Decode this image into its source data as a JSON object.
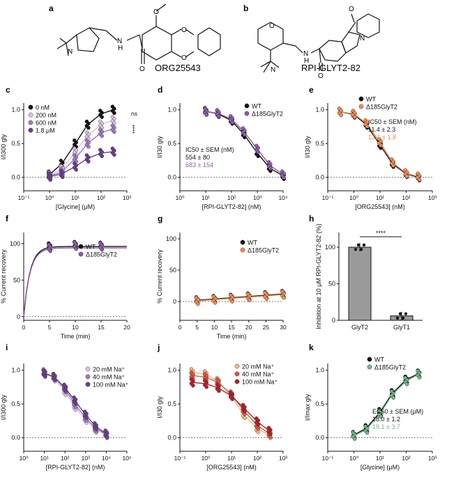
{
  "figure": {
    "panel_letters": [
      "a",
      "b",
      "c",
      "d",
      "e",
      "f",
      "g",
      "h",
      "i",
      "j",
      "k"
    ],
    "compound_a": {
      "name": "ORG25543",
      "atom_o1": "O",
      "atom_o2": "O",
      "atom_o3": "O",
      "atom_o4": "O",
      "atom_n": "N",
      "atom_nplus": "N",
      "atom_h": "H"
    },
    "compound_b": {
      "name": "RPI-GLYT2-82",
      "atom_o1": "O",
      "atom_o2": "O",
      "atom_o3": "O",
      "atom_n": "N",
      "atom_n2": "N",
      "atom_nplus": "N",
      "atom_h": "H"
    }
  },
  "colors": {
    "black": "#111111",
    "purple_dark": "#6a3d8f",
    "purple_mid": "#9f79bd",
    "purple_light": "#d6c4e6",
    "wt": "#111111",
    "mut_purple": "#8e5aa8",
    "orange": "#f08a52",
    "orange_light": "#f6b483",
    "red_dark": "#b5202a",
    "red_mid": "#e0553b",
    "green": "#6fb585",
    "gray_bar": "#9a9a9a"
  },
  "chart_data": [
    {
      "panel": "c",
      "type": "scatter",
      "ylabel": "I/I300 gly",
      "xlabel": "[Glycine] (μM)",
      "xscale": "log",
      "xlim": [
        0.1,
        1000
      ],
      "ylim": [
        -0.2,
        1.1
      ],
      "xticks": [
        "10⁻¹",
        "10⁰",
        "10¹",
        "10²",
        "10³"
      ],
      "yticks": [
        "0.0",
        "0.5",
        "1.0"
      ],
      "series": [
        {
          "name": "0 nM",
          "x": [
            1,
            3,
            10,
            30,
            100,
            300
          ],
          "y": [
            0.04,
            0.2,
            0.5,
            0.78,
            0.94,
            1.0
          ]
        },
        {
          "name": "200 nM",
          "x": [
            1,
            3,
            10,
            30,
            100,
            300
          ],
          "y": [
            0.03,
            0.12,
            0.38,
            0.62,
            0.78,
            0.85
          ]
        },
        {
          "name": "600 nM",
          "x": [
            1,
            3,
            10,
            30,
            100,
            300
          ],
          "y": [
            0.02,
            0.08,
            0.28,
            0.5,
            0.66,
            0.72
          ]
        },
        {
          "name": "1.8 μM",
          "x": [
            1,
            3,
            10,
            30,
            100,
            300
          ],
          "y": [
            0.01,
            0.05,
            0.16,
            0.28,
            0.36,
            0.38
          ]
        }
      ],
      "annotations": [
        "ns",
        "****"
      ]
    },
    {
      "panel": "d",
      "type": "scatter",
      "ylabel": "I/I30 gly",
      "xlabel": "[RPI-GLYT2-82] (nM)",
      "xscale": "log",
      "xlim": [
        1,
        10000
      ],
      "ylim": [
        -0.2,
        1.1
      ],
      "xticks": [
        "10⁰",
        "10¹",
        "10²",
        "10³",
        "10⁴"
      ],
      "yticks": [
        "0.0",
        "0.5",
        "1.0"
      ],
      "series": [
        {
          "name": "WT",
          "x": [
            10,
            30,
            100,
            300,
            1000,
            3000,
            10000
          ],
          "y": [
            0.98,
            0.94,
            0.84,
            0.64,
            0.36,
            0.14,
            0.02
          ]
        },
        {
          "name": "Δ185GlyT2",
          "x": [
            10,
            30,
            100,
            300,
            1000,
            3000,
            10000
          ],
          "y": [
            0.97,
            0.95,
            0.86,
            0.68,
            0.42,
            0.18,
            0.04
          ]
        }
      ],
      "ic50_header": "IC50 ± SEM (nM)",
      "ic50_values": [
        "554 ± 80",
        "683 ± 154"
      ]
    },
    {
      "panel": "e",
      "type": "scatter",
      "ylabel": "I/I30 gly",
      "xlabel": "[ORG25543] (nM)",
      "xscale": "log",
      "xlim": [
        0.1,
        1000
      ],
      "ylim": [
        -0.2,
        1.1
      ],
      "xticks": [
        "10⁻¹",
        "10⁰",
        "10¹",
        "10²",
        "10³"
      ],
      "yticks": [
        "0.0",
        "0.5",
        "1.0"
      ],
      "series": [
        {
          "name": "WT",
          "x": [
            0.3,
            1,
            3,
            10,
            30,
            100,
            300
          ],
          "y": [
            0.97,
            0.93,
            0.78,
            0.48,
            0.2,
            0.05,
            0.0
          ]
        },
        {
          "name": "Δ185GlyT2",
          "x": [
            0.3,
            1,
            3,
            10,
            30,
            100,
            300
          ],
          "y": [
            0.97,
            0.94,
            0.8,
            0.52,
            0.22,
            0.06,
            0.01
          ]
        }
      ],
      "ic50_header": "IC50 ± SEM (nM)",
      "ic50_values": [
        "11.4 ± 2.3",
        "13.1 ± 1.8"
      ]
    },
    {
      "panel": "f",
      "type": "scatter",
      "ylabel": "% Current recovery",
      "xlabel": "Time (min)",
      "xlim": [
        0,
        20
      ],
      "ylim": [
        -5,
        115
      ],
      "xticks": [
        "0",
        "5",
        "10",
        "15",
        "20"
      ],
      "yticks": [
        "0",
        "50",
        "100"
      ],
      "series": [
        {
          "name": "WT",
          "x": [
            5,
            10,
            15
          ],
          "y": [
            96,
            98,
            97
          ]
        },
        {
          "name": "Δ185GlyT2",
          "x": [
            5,
            10,
            15
          ],
          "y": [
            94,
            97,
            96
          ]
        }
      ]
    },
    {
      "panel": "g",
      "type": "scatter",
      "ylabel": "% Current recovery",
      "xlabel": "Time (min)",
      "xlim": [
        0,
        30
      ],
      "ylim": [
        -30,
        110
      ],
      "xticks": [
        "0",
        "5",
        "10",
        "15",
        "20",
        "25",
        "30"
      ],
      "yticks": [
        "0",
        "50",
        "100"
      ],
      "series": [
        {
          "name": "WT",
          "x": [
            5,
            10,
            15,
            20,
            25,
            30
          ],
          "y": [
            2,
            4,
            6,
            8,
            10,
            12
          ]
        },
        {
          "name": "Δ185GlyT2",
          "x": [
            5,
            10,
            15,
            20,
            25,
            30
          ],
          "y": [
            1,
            3,
            5,
            7,
            9,
            11
          ]
        }
      ]
    },
    {
      "panel": "h",
      "type": "bar",
      "ylabel": "Inhibition at 10 μM RPI-GLYT2-82 (%)",
      "categories": [
        "GlyT2",
        "GlyT1"
      ],
      "values": [
        100,
        6
      ],
      "ylim": [
        0,
        120
      ],
      "yticks": [
        "0",
        "50",
        "100"
      ],
      "annotation": "****"
    },
    {
      "panel": "i",
      "type": "scatter",
      "ylabel": "I/I300 gly",
      "xlabel": "[RPI-GLYT2-82] (nM)",
      "xscale": "log",
      "xlim": [
        1,
        100000
      ],
      "ylim": [
        -0.2,
        1.1
      ],
      "xticks": [
        "10⁰",
        "10¹",
        "10²",
        "10³",
        "10⁴",
        "10⁵"
      ],
      "yticks": [
        "0.0",
        "0.5",
        "1.0"
      ],
      "series": [
        {
          "name": "20 mM Na⁺",
          "x": [
            10,
            30,
            100,
            300,
            1000,
            3000,
            10000
          ],
          "y": [
            0.97,
            0.88,
            0.68,
            0.46,
            0.27,
            0.12,
            0.04
          ]
        },
        {
          "name": "40 mM Na⁺",
          "x": [
            10,
            30,
            100,
            300,
            1000,
            3000,
            10000
          ],
          "y": [
            0.96,
            0.9,
            0.72,
            0.5,
            0.3,
            0.14,
            0.05
          ]
        },
        {
          "name": "100 mM Na⁺",
          "x": [
            10,
            30,
            100,
            300,
            1000,
            3000,
            10000
          ],
          "y": [
            0.95,
            0.9,
            0.74,
            0.55,
            0.34,
            0.17,
            0.06
          ]
        }
      ]
    },
    {
      "panel": "j",
      "type": "scatter",
      "ylabel": "I/I30 gly",
      "xlabel": "[ORG25543] (nM)",
      "xscale": "log",
      "xlim": [
        0.1,
        1000
      ],
      "ylim": [
        -0.2,
        1.1
      ],
      "xticks": [
        "10⁻¹",
        "10⁰",
        "10¹",
        "10²",
        "10³"
      ],
      "yticks": [
        "0.0",
        "0.5",
        "1.0"
      ],
      "series": [
        {
          "name": "20 mM Na⁺",
          "x": [
            0.3,
            1,
            3,
            10,
            30,
            100,
            300
          ],
          "y": [
            0.97,
            0.94,
            0.84,
            0.62,
            0.34,
            0.13,
            0.04
          ]
        },
        {
          "name": "40 mM Na⁺",
          "x": [
            0.3,
            1,
            3,
            10,
            30,
            100,
            300
          ],
          "y": [
            0.92,
            0.9,
            0.82,
            0.64,
            0.4,
            0.18,
            0.06
          ]
        },
        {
          "name": "100 mM Na⁺",
          "x": [
            0.3,
            1,
            3,
            10,
            30,
            100,
            300
          ],
          "y": [
            0.82,
            0.8,
            0.74,
            0.62,
            0.44,
            0.24,
            0.1
          ]
        }
      ]
    },
    {
      "panel": "k",
      "type": "scatter",
      "ylabel": "I/Imax gly",
      "xlabel": "[Glycine] (μM)",
      "xscale": "log",
      "xlim": [
        0.1,
        1000
      ],
      "ylim": [
        -0.2,
        1.1
      ],
      "xticks": [
        "10⁻¹",
        "10⁰",
        "10¹",
        "10²",
        "10³"
      ],
      "yticks": [
        "0.0",
        "0.5",
        "1.0"
      ],
      "series": [
        {
          "name": "WT",
          "x": [
            1,
            3,
            10,
            30,
            100,
            300
          ],
          "y": [
            0.04,
            0.14,
            0.38,
            0.66,
            0.86,
            0.95
          ]
        },
        {
          "name": "Δ185GlyT2",
          "x": [
            1,
            3,
            10,
            30,
            100,
            300
          ],
          "y": [
            0.03,
            0.12,
            0.36,
            0.64,
            0.84,
            0.94
          ]
        }
      ],
      "ec50_header": "EC50 ± SEM (μM)",
      "ec50_values": [
        "18.0 ± 1.2",
        "19.1 ± 3.7"
      ]
    }
  ]
}
